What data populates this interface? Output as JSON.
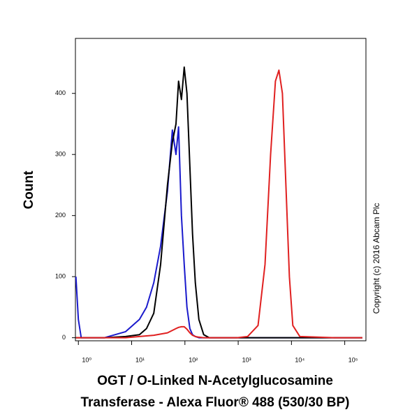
{
  "chart_data": {
    "type": "line",
    "xlabel": [
      "OGT / O-Linked N-Acetylglucosamine",
      "Transferase - Alexa Fluor® 488 (530/30 BP)"
    ],
    "ylabel": "Count",
    "annotation": "Copyright (c) 2016 Abcam Plc",
    "xscale": "log",
    "x": [
      0.9,
      1.0,
      1.13,
      3.1,
      7.7,
      14,
      19,
      26,
      35,
      47,
      58,
      68,
      76,
      86,
      97,
      109,
      124,
      139,
      157,
      183,
      225,
      287,
      955,
      1500,
      2360,
      3190,
      4060,
      5000,
      5820,
      6760,
      7860,
      9140,
      10600,
      14400,
      64600,
      215000
    ],
    "series": [
      {
        "color": "#1a1acc",
        "values": [
          100,
          30,
          0,
          0,
          10,
          30,
          50,
          90,
          150,
          240,
          340,
          300,
          345,
          200,
          120,
          50,
          15,
          5,
          2,
          0,
          0,
          0,
          0,
          0,
          0,
          0,
          0,
          0,
          0,
          0,
          0,
          0,
          0,
          0,
          0,
          0
        ]
      },
      {
        "color": "#000000",
        "values": [
          0,
          0,
          0,
          0,
          2,
          5,
          15,
          40,
          120,
          250,
          320,
          350,
          420,
          390,
          443,
          400,
          280,
          170,
          90,
          30,
          5,
          0,
          0,
          0,
          0,
          0,
          0,
          0,
          0,
          0,
          0,
          0,
          0,
          0,
          0,
          0
        ]
      },
      {
        "color": "#e02020",
        "values": [
          0,
          0,
          0,
          0,
          0,
          2,
          3,
          4,
          6,
          8,
          12,
          15,
          17,
          18,
          18,
          14,
          8,
          4,
          2,
          1,
          0,
          0,
          0,
          2,
          20,
          120,
          300,
          420,
          438,
          400,
          250,
          100,
          20,
          2,
          0,
          0
        ]
      }
    ],
    "xlim": [
      0.88,
      250000
    ],
    "ylim": [
      -5,
      490
    ],
    "xticks": [
      {
        "value": 1,
        "label": "10⁰"
      },
      {
        "value": 10,
        "label": "10¹"
      },
      {
        "value": 100,
        "label": "10²"
      },
      {
        "value": 1000,
        "label": "10³"
      },
      {
        "value": 10000,
        "label": "10⁴"
      },
      {
        "value": 100000,
        "label": "10⁵"
      }
    ],
    "yticks": [
      0,
      100,
      200,
      300,
      400
    ]
  }
}
